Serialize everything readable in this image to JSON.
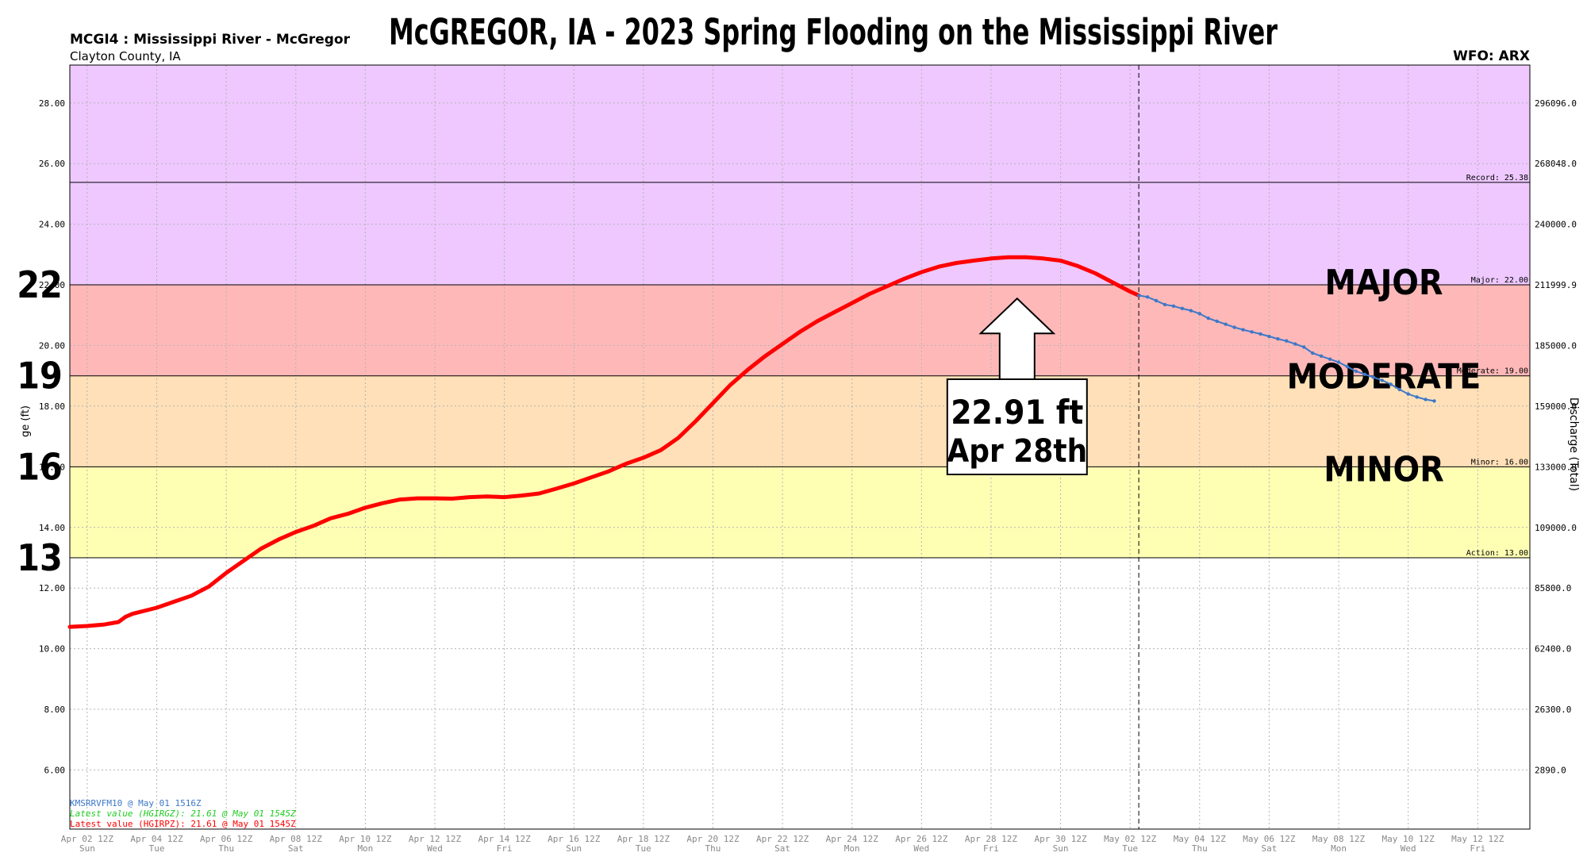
{
  "chart_data": {
    "type": "line",
    "title": "McGREGOR, IA - 2023 Spring Flooding on the Mississippi River",
    "station_id": "MCGI4 : Mississippi River - McGregor",
    "county": "Clayton County, IA",
    "wfo": "WFO: ARX",
    "ylabel_left": "ge (ft)",
    "ylabel_right": "Discharge (Total)",
    "ylim": [
      4.05,
      29.25
    ],
    "xlim_days": [
      -0.5,
      41.5
    ],
    "y_ticks": [
      6,
      8,
      10,
      12,
      14,
      16,
      18,
      20,
      22,
      24,
      26,
      28
    ],
    "y_tick_labels": [
      "6.00",
      "8.00",
      "10.00",
      "12.00",
      "14.00",
      "16.00",
      "18.00",
      "20.00",
      "22.00",
      "24.00",
      "26.00",
      "28.00"
    ],
    "right_ticks": [
      {
        "y": 6,
        "label": "2890.0"
      },
      {
        "y": 8,
        "label": "26300.0"
      },
      {
        "y": 10,
        "label": "62400.0"
      },
      {
        "y": 12,
        "label": "85800.0"
      },
      {
        "y": 14,
        "label": "109000.0"
      },
      {
        "y": 16,
        "label": "133000.0"
      },
      {
        "y": 18,
        "label": "159000.0"
      },
      {
        "y": 20,
        "label": "185000.0"
      },
      {
        "y": 22,
        "label": "211999.9"
      },
      {
        "y": 24,
        "label": "240000.0"
      },
      {
        "y": 26,
        "label": "268048.0"
      },
      {
        "y": 28,
        "label": "296096.0"
      }
    ],
    "x_ticks": [
      {
        "day": 0,
        "date": "Apr 02 12Z",
        "dow": "Sun"
      },
      {
        "day": 2,
        "date": "Apr 04 12Z",
        "dow": "Tue"
      },
      {
        "day": 4,
        "date": "Apr 06 12Z",
        "dow": "Thu"
      },
      {
        "day": 6,
        "date": "Apr 08 12Z",
        "dow": "Sat"
      },
      {
        "day": 8,
        "date": "Apr 10 12Z",
        "dow": "Mon"
      },
      {
        "day": 10,
        "date": "Apr 12 12Z",
        "dow": "Wed"
      },
      {
        "day": 12,
        "date": "Apr 14 12Z",
        "dow": "Fri"
      },
      {
        "day": 14,
        "date": "Apr 16 12Z",
        "dow": "Sun"
      },
      {
        "day": 16,
        "date": "Apr 18 12Z",
        "dow": "Tue"
      },
      {
        "day": 18,
        "date": "Apr 20 12Z",
        "dow": "Thu"
      },
      {
        "day": 20,
        "date": "Apr 22 12Z",
        "dow": "Sat"
      },
      {
        "day": 22,
        "date": "Apr 24 12Z",
        "dow": "Mon"
      },
      {
        "day": 24,
        "date": "Apr 26 12Z",
        "dow": "Wed"
      },
      {
        "day": 26,
        "date": "Apr 28 12Z",
        "dow": "Fri"
      },
      {
        "day": 28,
        "date": "Apr 30 12Z",
        "dow": "Sun"
      },
      {
        "day": 30,
        "date": "May 02 12Z",
        "dow": "Tue"
      },
      {
        "day": 32,
        "date": "May 04 12Z",
        "dow": "Thu"
      },
      {
        "day": 34,
        "date": "May 06 12Z",
        "dow": "Sat"
      },
      {
        "day": 36,
        "date": "May 08 12Z",
        "dow": "Mon"
      },
      {
        "day": 38,
        "date": "May 10 12Z",
        "dow": "Wed"
      },
      {
        "day": 40,
        "date": "May 12 12Z",
        "dow": "Fri"
      }
    ],
    "flood_zones": [
      {
        "name": "Action",
        "from": 13,
        "to": 16,
        "color": "#ffffb4"
      },
      {
        "name": "Minor",
        "from": 16,
        "to": 19,
        "color": "#ffe0b8"
      },
      {
        "name": "Moderate",
        "from": 19,
        "to": 22,
        "color": "#ffb8b8"
      },
      {
        "name": "Major",
        "from": 22,
        "to": 29.25,
        "color": "#eec8ff"
      }
    ],
    "thresholds": [
      {
        "label": "Record: 25.38",
        "value": 25.38
      },
      {
        "label": "Major: 22.00",
        "value": 22.0
      },
      {
        "label": "Moderate: 19.00",
        "value": 19.0
      },
      {
        "label": "Minor: 16.00",
        "value": 16.0
      },
      {
        "label": "Action: 13.00",
        "value": 13.0
      }
    ],
    "left_markers": [
      {
        "value": 22,
        "label": "22"
      },
      {
        "value": 19,
        "label": "19"
      },
      {
        "value": 16,
        "label": "16"
      },
      {
        "value": 13,
        "label": "13"
      }
    ],
    "category_labels": [
      {
        "label": "MAJOR",
        "value": 22.1
      },
      {
        "label": "MODERATE",
        "value": 19.0
      },
      {
        "label": "MINOR",
        "value": 15.95
      }
    ],
    "forecast_start_day": 30.25,
    "observed": {
      "color": "#ff0000",
      "points": [
        [
          -0.5,
          10.72
        ],
        [
          0,
          10.75
        ],
        [
          0.5,
          10.8
        ],
        [
          0.9,
          10.88
        ],
        [
          1.1,
          11.05
        ],
        [
          1.3,
          11.15
        ],
        [
          2,
          11.35
        ],
        [
          2.5,
          11.55
        ],
        [
          3,
          11.75
        ],
        [
          3.5,
          12.05
        ],
        [
          4,
          12.5
        ],
        [
          4.5,
          12.9
        ],
        [
          5,
          13.3
        ],
        [
          5.5,
          13.6
        ],
        [
          6,
          13.85
        ],
        [
          6.5,
          14.05
        ],
        [
          7,
          14.3
        ],
        [
          7.5,
          14.45
        ],
        [
          8,
          14.65
        ],
        [
          8.5,
          14.8
        ],
        [
          9,
          14.92
        ],
        [
          9.5,
          14.96
        ],
        [
          10,
          14.96
        ],
        [
          10.5,
          14.95
        ],
        [
          11,
          15.0
        ],
        [
          11.5,
          15.02
        ],
        [
          12,
          15.0
        ],
        [
          12.5,
          15.05
        ],
        [
          13,
          15.12
        ],
        [
          13.5,
          15.28
        ],
        [
          14,
          15.45
        ],
        [
          14.5,
          15.65
        ],
        [
          15,
          15.85
        ],
        [
          15.5,
          16.1
        ],
        [
          16,
          16.3
        ],
        [
          16.5,
          16.55
        ],
        [
          17,
          16.95
        ],
        [
          17.5,
          17.5
        ],
        [
          18,
          18.1
        ],
        [
          18.5,
          18.7
        ],
        [
          19,
          19.2
        ],
        [
          19.5,
          19.65
        ],
        [
          20,
          20.05
        ],
        [
          20.5,
          20.45
        ],
        [
          21,
          20.8
        ],
        [
          21.5,
          21.1
        ],
        [
          22,
          21.4
        ],
        [
          22.5,
          21.7
        ],
        [
          23,
          21.95
        ],
        [
          23.5,
          22.2
        ],
        [
          24,
          22.42
        ],
        [
          24.5,
          22.6
        ],
        [
          25,
          22.72
        ],
        [
          25.5,
          22.8
        ],
        [
          26,
          22.87
        ],
        [
          26.5,
          22.91
        ],
        [
          27,
          22.91
        ],
        [
          27.5,
          22.87
        ],
        [
          28,
          22.8
        ],
        [
          28.5,
          22.62
        ],
        [
          29,
          22.38
        ],
        [
          29.5,
          22.08
        ],
        [
          30,
          21.78
        ],
        [
          30.25,
          21.65
        ]
      ]
    },
    "forecast": {
      "color": "#3c78c8",
      "points": [
        [
          30.25,
          21.65
        ],
        [
          30.5,
          21.6
        ],
        [
          30.75,
          21.48
        ],
        [
          31,
          21.35
        ],
        [
          31.25,
          21.3
        ],
        [
          31.5,
          21.22
        ],
        [
          31.75,
          21.15
        ],
        [
          32,
          21.05
        ],
        [
          32.25,
          20.9
        ],
        [
          32.5,
          20.8
        ],
        [
          32.75,
          20.7
        ],
        [
          33,
          20.6
        ],
        [
          33.25,
          20.52
        ],
        [
          33.5,
          20.45
        ],
        [
          33.75,
          20.38
        ],
        [
          34,
          20.3
        ],
        [
          34.25,
          20.22
        ],
        [
          34.5,
          20.15
        ],
        [
          34.75,
          20.05
        ],
        [
          35,
          19.95
        ],
        [
          35.25,
          19.75
        ],
        [
          35.5,
          19.65
        ],
        [
          35.75,
          19.55
        ],
        [
          36,
          19.45
        ],
        [
          36.25,
          19.3
        ],
        [
          36.5,
          19.15
        ],
        [
          36.75,
          19.05
        ],
        [
          37,
          18.95
        ],
        [
          37.25,
          18.85
        ],
        [
          37.5,
          18.72
        ],
        [
          37.75,
          18.55
        ],
        [
          38,
          18.4
        ],
        [
          38.25,
          18.3
        ],
        [
          38.5,
          18.22
        ],
        [
          38.75,
          18.17
        ]
      ]
    }
  },
  "annotation": {
    "value_text": "22.91 ft",
    "date_text": "Apr 28th",
    "peak_day": 26.75,
    "peak_value": 22.91
  },
  "footer": {
    "line1": "KMSRRVFM10 @ May 01 1516Z",
    "line2": "Latest value (HGIRGZ): 21.61 @ May 01 1545Z",
    "line3": "Latest value (HGIRPZ): 21.61 @ May 01 1545Z",
    "colors": [
      "#3c78c8",
      "#22cc22",
      "#ff0000"
    ]
  }
}
